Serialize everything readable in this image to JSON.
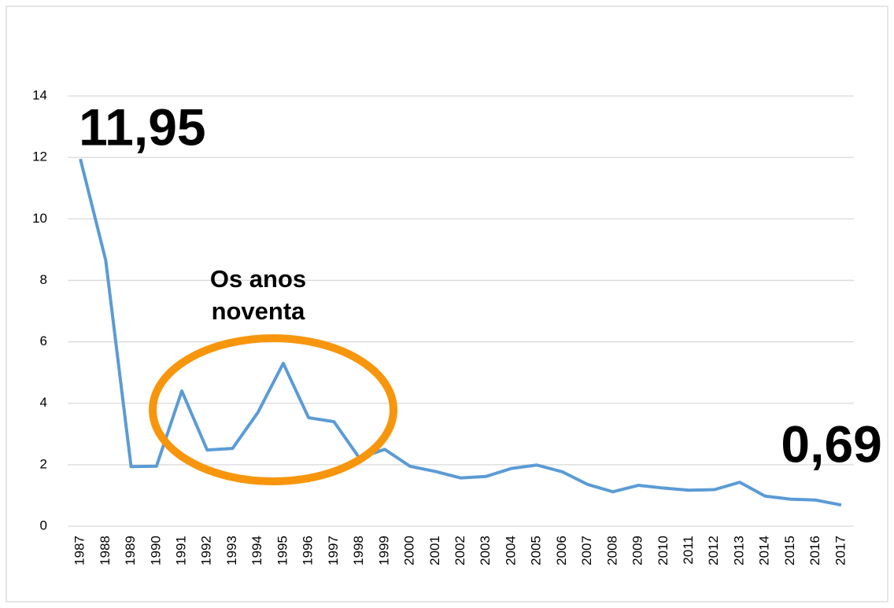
{
  "chart_data": {
    "type": "line",
    "categories": [
      "1987",
      "1988",
      "1989",
      "1990",
      "1991",
      "1992",
      "1993",
      "1994",
      "1995",
      "1996",
      "1997",
      "1998",
      "1999",
      "2000",
      "2001",
      "2002",
      "2003",
      "2004",
      "2005",
      "2006",
      "2007",
      "2008",
      "2009",
      "2010",
      "2011",
      "2012",
      "2013",
      "2014",
      "2015",
      "2016",
      "2017"
    ],
    "values": [
      11.95,
      8.65,
      1.94,
      1.95,
      4.4,
      2.48,
      2.53,
      3.7,
      5.3,
      3.53,
      3.4,
      2.22,
      2.5,
      1.95,
      1.78,
      1.57,
      1.62,
      1.88,
      1.99,
      1.77,
      1.36,
      1.12,
      1.33,
      1.24,
      1.17,
      1.19,
      1.43,
      0.98,
      0.88,
      0.85,
      0.69
    ],
    "value_labels": [
      "11,95",
      null,
      null,
      null,
      null,
      null,
      null,
      null,
      null,
      null,
      null,
      null,
      null,
      null,
      null,
      null,
      null,
      null,
      null,
      null,
      null,
      null,
      null,
      null,
      null,
      null,
      null,
      null,
      null,
      null,
      "0,69"
    ],
    "color": "#5b9bd5",
    "ylim": [
      0,
      14
    ],
    "yticks": [
      0,
      2,
      4,
      6,
      8,
      10,
      12,
      14
    ],
    "grid": true,
    "annotation": [
      "Os anos",
      "noventa"
    ]
  }
}
